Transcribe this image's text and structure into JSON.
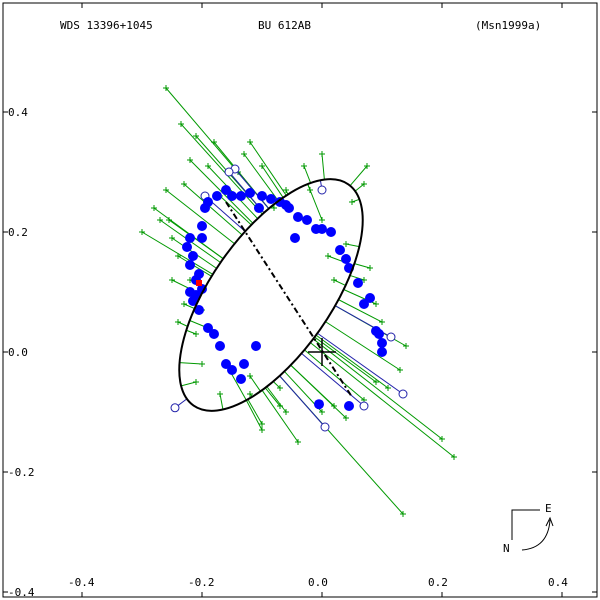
{
  "header": {
    "wds": "WDS 13396+1045",
    "discoverer": "BU  612AB",
    "reference": "(Msn1999a)"
  },
  "compass": {
    "east": "E",
    "north": "N"
  },
  "chart_data": {
    "type": "scatter",
    "title": "",
    "xlabel": "",
    "ylabel": "",
    "xlim": [
      -0.5,
      0.45
    ],
    "ylim": [
      -0.4,
      0.45
    ],
    "x_ticks": [
      -0.4,
      -0.2,
      0.0,
      0.2,
      0.4
    ],
    "y_ticks": [
      -0.4,
      -0.2,
      0.0,
      0.2,
      0.4
    ],
    "x_tick_labels": [
      "-0.4",
      "-0.2",
      "0.0",
      "0.2",
      "0.4"
    ],
    "y_tick_labels": [
      "-0.4",
      "-0.2",
      "0.0",
      "0.2",
      "0.4"
    ],
    "grid": false,
    "primary": [
      0,
      0
    ],
    "orbit": {
      "center": [
        -0.085,
        0.095
      ],
      "semi_axes": [
        0.1,
        0.225
      ],
      "tilt_deg": 35
    },
    "line_of_nodes": [
      [
        -0.16,
        0.25
      ],
      [
        0.05,
        -0.075
      ]
    ],
    "colors": {
      "orbit": "#000000",
      "micrometric": "#009900",
      "speckle": "#0000ff",
      "interferometric_open": "#2222aa",
      "recent": "#ff0000"
    },
    "series": [
      {
        "marker": "plus",
        "points": [
          [
            -0.26,
            0.44
          ],
          [
            -0.235,
            0.38
          ],
          [
            -0.22,
            0.32
          ],
          [
            -0.21,
            0.36
          ],
          [
            -0.18,
            0.35
          ],
          [
            -0.12,
            0.35
          ],
          [
            -0.13,
            0.33
          ],
          [
            -0.1,
            0.31
          ],
          [
            -0.03,
            0.31
          ],
          [
            0.0,
            0.33
          ],
          [
            0.075,
            0.31
          ],
          [
            0.07,
            0.28
          ],
          [
            0.05,
            0.25
          ],
          [
            -0.3,
            0.2
          ],
          [
            -0.28,
            0.24
          ],
          [
            -0.26,
            0.27
          ],
          [
            -0.255,
            0.22
          ],
          [
            -0.24,
            0.16
          ],
          [
            -0.25,
            0.12
          ],
          [
            -0.23,
            0.08
          ],
          [
            -0.24,
            0.05
          ],
          [
            -0.21,
            0.03
          ],
          [
            -0.2,
            -0.02
          ],
          [
            -0.21,
            -0.05
          ],
          [
            -0.17,
            -0.07
          ],
          [
            -0.12,
            -0.04
          ],
          [
            -0.1,
            -0.13
          ],
          [
            -0.07,
            -0.06
          ],
          [
            -0.06,
            -0.1
          ],
          [
            0.0,
            -0.1
          ],
          [
            0.04,
            -0.11
          ],
          [
            0.07,
            -0.08
          ],
          [
            0.09,
            -0.05
          ],
          [
            0.13,
            -0.03
          ],
          [
            0.14,
            0.01
          ],
          [
            0.09,
            0.08
          ],
          [
            0.08,
            0.14
          ],
          [
            0.04,
            0.18
          ],
          [
            0.02,
            0.12
          ],
          [
            0.01,
            0.16
          ],
          [
            0.0,
            0.22
          ],
          [
            -0.02,
            0.27
          ],
          [
            -0.06,
            0.27
          ],
          [
            -0.08,
            0.24
          ],
          [
            -0.14,
            0.3
          ],
          [
            -0.17,
            0.26
          ],
          [
            -0.19,
            0.31
          ],
          [
            -0.23,
            0.28
          ],
          [
            -0.27,
            0.22
          ],
          [
            -0.25,
            0.19
          ],
          [
            -0.22,
            0.12
          ],
          [
            -0.2,
            0.07
          ],
          [
            -0.19,
            0.04
          ],
          [
            -0.16,
            -0.02
          ],
          [
            -0.12,
            -0.07
          ],
          [
            -0.07,
            -0.09
          ],
          [
            0.02,
            -0.09
          ],
          [
            0.11,
            -0.06
          ],
          [
            0.1,
            0.05
          ],
          [
            0.07,
            0.12
          ],
          [
            0.22,
            -0.175
          ],
          [
            0.2,
            -0.145
          ],
          [
            0.135,
            -0.27
          ],
          [
            -0.04,
            -0.15
          ],
          [
            -0.1,
            -0.12
          ]
        ]
      },
      {
        "marker": "filled-circle",
        "points": [
          [
            -0.22,
            0.145
          ],
          [
            -0.215,
            0.16
          ],
          [
            -0.225,
            0.175
          ],
          [
            -0.22,
            0.19
          ],
          [
            -0.2,
            0.19
          ],
          [
            -0.2,
            0.21
          ],
          [
            -0.195,
            0.24
          ],
          [
            -0.19,
            0.25
          ],
          [
            -0.175,
            0.26
          ],
          [
            -0.16,
            0.27
          ],
          [
            -0.15,
            0.26
          ],
          [
            -0.135,
            0.26
          ],
          [
            -0.12,
            0.265
          ],
          [
            -0.1,
            0.26
          ],
          [
            -0.085,
            0.255
          ],
          [
            -0.07,
            0.25
          ],
          [
            -0.06,
            0.245
          ],
          [
            -0.055,
            0.24
          ],
          [
            -0.04,
            0.225
          ],
          [
            -0.025,
            0.22
          ],
          [
            -0.01,
            0.205
          ],
          [
            0.0,
            0.205
          ],
          [
            0.015,
            0.2
          ],
          [
            0.03,
            0.17
          ],
          [
            0.04,
            0.155
          ],
          [
            0.045,
            0.14
          ],
          [
            0.06,
            0.115
          ],
          [
            0.07,
            0.08
          ],
          [
            0.08,
            0.09
          ],
          [
            0.09,
            0.035
          ],
          [
            0.095,
            0.03
          ],
          [
            0.1,
            0.015
          ],
          [
            0.1,
            0.0
          ],
          [
            -0.22,
            0.1
          ],
          [
            -0.215,
            0.085
          ],
          [
            -0.21,
            0.095
          ],
          [
            -0.205,
            0.07
          ],
          [
            -0.19,
            0.04
          ],
          [
            -0.18,
            0.03
          ],
          [
            -0.17,
            0.01
          ],
          [
            -0.16,
            -0.02
          ],
          [
            -0.15,
            -0.03
          ],
          [
            -0.135,
            -0.045
          ],
          [
            -0.13,
            -0.02
          ],
          [
            -0.11,
            0.01
          ],
          [
            -0.21,
            0.12
          ],
          [
            -0.205,
            0.13
          ],
          [
            -0.2,
            0.105
          ],
          [
            -0.105,
            0.24
          ],
          [
            -0.045,
            0.19
          ],
          [
            -0.005,
            -0.087
          ],
          [
            0.045,
            -0.09
          ]
        ]
      },
      {
        "marker": "open-circle",
        "points": [
          [
            -0.245,
            -0.093
          ],
          [
            -0.145,
            0.305
          ],
          [
            -0.155,
            0.3
          ],
          [
            -0.195,
            0.26
          ],
          [
            0.0,
            0.27
          ],
          [
            0.135,
            -0.07
          ],
          [
            0.115,
            0.025
          ],
          [
            0.07,
            -0.09
          ],
          [
            0.005,
            -0.125
          ]
        ]
      },
      {
        "marker": "filled-square",
        "points": [
          [
            -0.205,
            0.115
          ]
        ]
      }
    ]
  }
}
